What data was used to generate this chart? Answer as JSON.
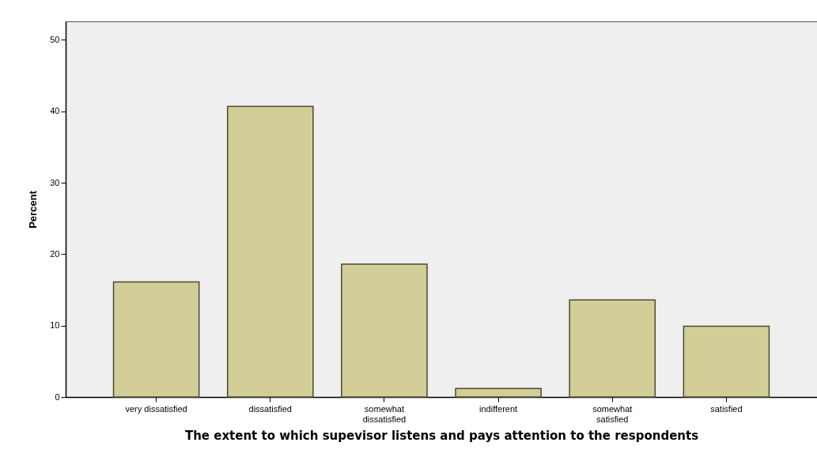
{
  "chart_data": {
    "type": "bar",
    "xlabel": "The extent to which supevisor listens and pays attention to the respondents",
    "ylabel": "Percent",
    "categories": [
      "very dissatisfied",
      "dissatisfied",
      "somewhat dissatisfied",
      "indifferent",
      "somewhat satisfied",
      "satisfied"
    ],
    "values": [
      16.1,
      40.7,
      18.6,
      1.2,
      13.6,
      9.9
    ],
    "color": "#d3cd97",
    "ylim": [
      0,
      52.6
    ],
    "yticks": [
      0,
      10,
      20,
      30,
      40,
      50
    ],
    "grid": false
  }
}
